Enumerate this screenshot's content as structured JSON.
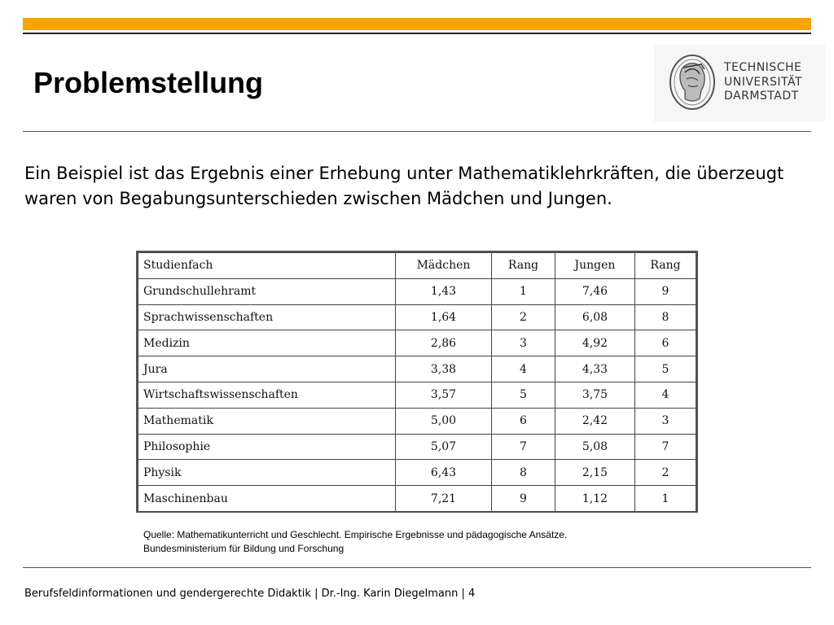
{
  "slide": {
    "title": "Problemstellung",
    "accent_color": "#f5a300"
  },
  "logo": {
    "icon": "athena-head-seal-icon",
    "lines": [
      "TECHNISCHE",
      "UNIVERSITÄT",
      "DARMSTADT"
    ]
  },
  "intro": "Ein Beispiel ist das Ergebnis einer Erhebung unter Mathematiklehrkräften, die überzeugt waren von Begabungsunterschieden zwischen Mädchen und Jungen.",
  "table": {
    "headers": [
      "Studienfach",
      "Mädchen",
      "Rang",
      "Jungen",
      "Rang"
    ],
    "rows": [
      [
        "Grundschullehramt",
        "1,43",
        "1",
        "7,46",
        "9"
      ],
      [
        "Sprachwissenschaften",
        "1,64",
        "2",
        "6,08",
        "8"
      ],
      [
        "Medizin",
        "2,86",
        "3",
        "4,92",
        "6"
      ],
      [
        "Jura",
        "3,38",
        "4",
        "4,33",
        "5"
      ],
      [
        "Wirtschaftswissenschaften",
        "3,57",
        "5",
        "3,75",
        "4"
      ],
      [
        "Mathematik",
        "5,00",
        "6",
        "2,42",
        "3"
      ],
      [
        "Philosophie",
        "5,07",
        "7",
        "5,08",
        "7"
      ],
      [
        "Physik",
        "6,43",
        "8",
        "2,15",
        "2"
      ],
      [
        "Maschinenbau",
        "7,21",
        "9",
        "1,12",
        "1"
      ]
    ]
  },
  "source": {
    "line1": "Quelle: Mathematikunterricht und Geschlecht. Empirische Ergebnisse und pädagogische Ansätze.",
    "line2": "Bundesministerium für Bildung und Forschung"
  },
  "footer": {
    "text": "Berufsfeldinformationen und gendergerechte Didaktik | Dr.-Ing. Karin Diegelmann |  4"
  }
}
